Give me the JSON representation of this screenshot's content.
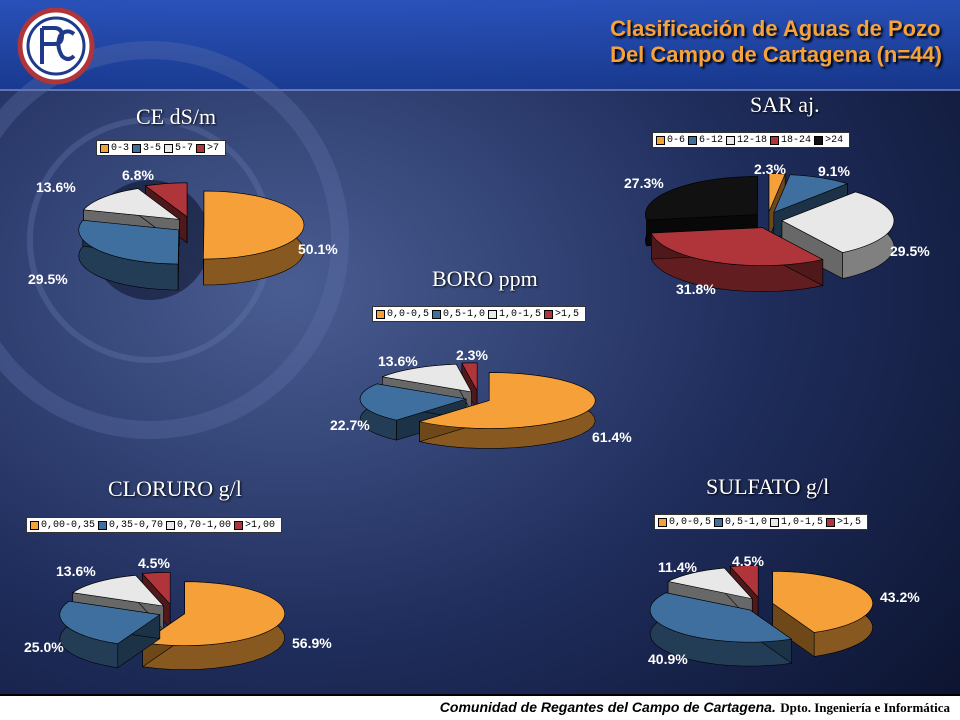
{
  "title": {
    "line1": "Clasificación de Aguas de Pozo",
    "line2": "Del Campo de Cartagena (n=44)"
  },
  "footer": {
    "main": "Comunidad de Regantes del Campo de Cartagena.",
    "dept": "Dpto. Ingeniería e Informática"
  },
  "colors": {
    "orange": "#f6a03a",
    "blue": "#3f6f9e",
    "white": "#e8e8e8",
    "red": "#b0353a",
    "black": "#111111",
    "title": "#f6a23a"
  },
  "chart_data": [
    {
      "type": "pie",
      "title": "CE dS/m",
      "categories": [
        "0-3",
        "3-5",
        "5-7",
        ">7"
      ],
      "values": [
        50.1,
        29.5,
        13.6,
        6.8
      ],
      "labels": [
        "50.1%",
        "29.5%",
        "13.6%",
        "6.8%"
      ]
    },
    {
      "type": "pie",
      "title": "SAR aj.",
      "categories": [
        "0-6",
        "6-12",
        "12-18",
        "18-24",
        ">24"
      ],
      "values": [
        2.3,
        9.1,
        29.5,
        31.8,
        27.3
      ],
      "labels": [
        "2.3%",
        "9.1%",
        "29.5%",
        "31.8%",
        "27.3%"
      ]
    },
    {
      "type": "pie",
      "title": "BORO ppm",
      "categories": [
        "0,0-0,5",
        "0,5-1,0",
        "1,0-1,5",
        ">1,5"
      ],
      "values": [
        61.4,
        22.7,
        13.6,
        2.3
      ],
      "labels": [
        "61.4%",
        "22.7%",
        "13.6%",
        "2.3%"
      ]
    },
    {
      "type": "pie",
      "title": "CLORURO g/l",
      "categories": [
        "0,00-0,35",
        "0,35-0,70",
        "0,70-1,00",
        ">1,00"
      ],
      "values": [
        56.9,
        25.0,
        13.6,
        4.5
      ],
      "labels": [
        "56.9%",
        "25.0%",
        "13.6%",
        "4.5%"
      ]
    },
    {
      "type": "pie",
      "title": "SULFATO g/l",
      "categories": [
        "0,0-0,5",
        "0,5-1,0",
        "1,0-1,5",
        ">1,5"
      ],
      "values": [
        43.2,
        40.9,
        11.4,
        4.5
      ],
      "labels": [
        "43.2%",
        "40.9%",
        "11.4%",
        "4.5%"
      ]
    }
  ]
}
